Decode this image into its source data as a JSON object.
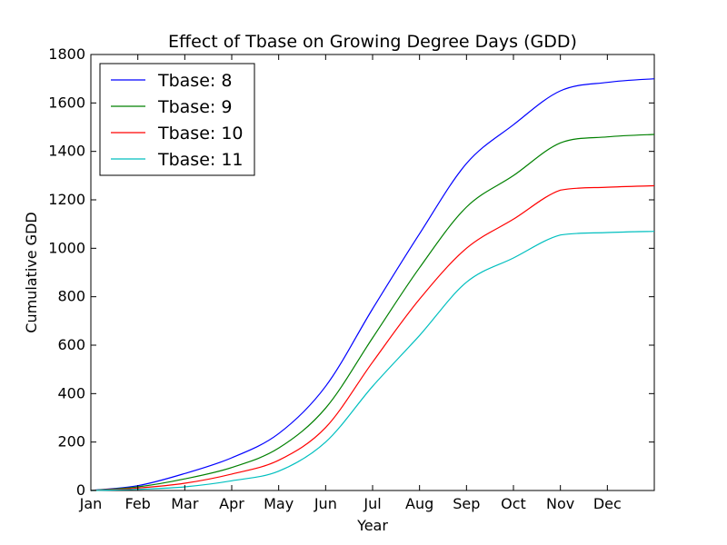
{
  "chart_data": {
    "type": "line",
    "title": "Effect of Tbase on Growing Degree Days (GDD)",
    "xlabel": "Year",
    "ylabel": "Cumulative GDD",
    "x_ticks": [
      "Jan",
      "Feb",
      "Mar",
      "Apr",
      "May",
      "Jun",
      "Jul",
      "Aug",
      "Sep",
      "Oct",
      "Nov",
      "Dec"
    ],
    "y_ticks": [
      "0",
      "200",
      "400",
      "600",
      "800",
      "1000",
      "1200",
      "1400",
      "1600",
      "1800"
    ],
    "xlim": [
      "Jan",
      "end of Dec"
    ],
    "ylim": [
      0,
      1800
    ],
    "legend_position": "top-left",
    "grid": false,
    "x": [
      "Jan",
      "Feb",
      "Mar",
      "Apr",
      "May",
      "Jun",
      "Jul",
      "Aug",
      "Sep",
      "Oct",
      "Nov",
      "Dec",
      "end of Dec"
    ],
    "series": [
      {
        "name": "Tbase: 8",
        "color": "#0000ff",
        "values": [
          0,
          20,
          70,
          135,
          235,
          430,
          750,
          1060,
          1350,
          1510,
          1650,
          1685,
          1700
        ]
      },
      {
        "name": "Tbase: 9",
        "color": "#008000",
        "values": [
          0,
          15,
          48,
          95,
          175,
          340,
          630,
          920,
          1170,
          1300,
          1435,
          1460,
          1470
        ]
      },
      {
        "name": "Tbase: 10",
        "color": "#ff0000",
        "values": [
          0,
          10,
          30,
          68,
          125,
          260,
          530,
          790,
          1000,
          1120,
          1240,
          1252,
          1258
        ]
      },
      {
        "name": "Tbase: 11",
        "color": "#00bfbf",
        "values": [
          0,
          5,
          15,
          40,
          80,
          200,
          430,
          640,
          860,
          960,
          1055,
          1065,
          1070
        ]
      }
    ]
  }
}
